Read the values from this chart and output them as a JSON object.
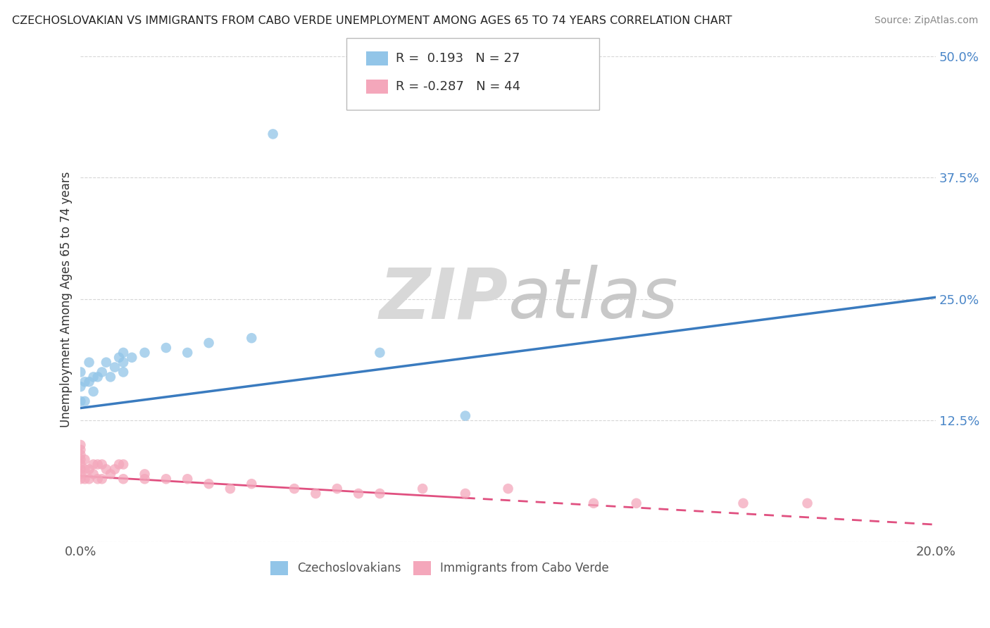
{
  "title": "CZECHOSLOVAKIAN VS IMMIGRANTS FROM CABO VERDE UNEMPLOYMENT AMONG AGES 65 TO 74 YEARS CORRELATION CHART",
  "source": "Source: ZipAtlas.com",
  "ylabel": "Unemployment Among Ages 65 to 74 years",
  "xlim": [
    0.0,
    0.2
  ],
  "ylim": [
    0.0,
    0.5
  ],
  "x_ticks": [
    0.0,
    0.05,
    0.1,
    0.15,
    0.2
  ],
  "x_tick_labels": [
    "0.0%",
    "",
    "",
    "",
    "20.0%"
  ],
  "y_ticks": [
    0.0,
    0.125,
    0.25,
    0.375,
    0.5
  ],
  "y_tick_labels": [
    "",
    "12.5%",
    "25.0%",
    "37.5%",
    "50.0%"
  ],
  "blue_color": "#92c5e8",
  "pink_color": "#f4a7bb",
  "blue_line_color": "#3a7bbf",
  "pink_line_color": "#e05080",
  "legend_blue_R": "0.193",
  "legend_blue_N": "27",
  "legend_pink_R": "-0.287",
  "legend_pink_N": "44",
  "legend_label_blue": "Czechoslovakians",
  "legend_label_pink": "Immigrants from Cabo Verde",
  "czech_x": [
    0.0,
    0.0,
    0.0,
    0.001,
    0.001,
    0.002,
    0.002,
    0.003,
    0.003,
    0.004,
    0.005,
    0.006,
    0.007,
    0.008,
    0.009,
    0.01,
    0.01,
    0.01,
    0.012,
    0.015,
    0.02,
    0.025,
    0.03,
    0.04,
    0.045,
    0.07,
    0.09
  ],
  "czech_y": [
    0.145,
    0.16,
    0.175,
    0.145,
    0.165,
    0.165,
    0.185,
    0.155,
    0.17,
    0.17,
    0.175,
    0.185,
    0.17,
    0.18,
    0.19,
    0.185,
    0.195,
    0.175,
    0.19,
    0.195,
    0.2,
    0.195,
    0.205,
    0.21,
    0.42,
    0.195,
    0.13
  ],
  "cabo_x": [
    0.0,
    0.0,
    0.0,
    0.0,
    0.0,
    0.0,
    0.0,
    0.0,
    0.001,
    0.001,
    0.001,
    0.002,
    0.002,
    0.003,
    0.003,
    0.004,
    0.004,
    0.005,
    0.005,
    0.006,
    0.007,
    0.008,
    0.009,
    0.01,
    0.01,
    0.015,
    0.015,
    0.02,
    0.025,
    0.03,
    0.035,
    0.04,
    0.05,
    0.055,
    0.06,
    0.065,
    0.07,
    0.08,
    0.09,
    0.1,
    0.12,
    0.13,
    0.155,
    0.17
  ],
  "cabo_y": [
    0.065,
    0.07,
    0.075,
    0.08,
    0.085,
    0.09,
    0.095,
    0.1,
    0.065,
    0.075,
    0.085,
    0.065,
    0.075,
    0.07,
    0.08,
    0.065,
    0.08,
    0.065,
    0.08,
    0.075,
    0.07,
    0.075,
    0.08,
    0.065,
    0.08,
    0.065,
    0.07,
    0.065,
    0.065,
    0.06,
    0.055,
    0.06,
    0.055,
    0.05,
    0.055,
    0.05,
    0.05,
    0.055,
    0.05,
    0.055,
    0.04,
    0.04,
    0.04,
    0.04
  ],
  "blue_trend_x0": 0.0,
  "blue_trend_y0": 0.138,
  "blue_trend_x1": 0.2,
  "blue_trend_y1": 0.252,
  "pink_trend_x0": 0.0,
  "pink_trend_y0": 0.068,
  "pink_trend_x1": 0.2,
  "pink_trend_y1": 0.018
}
